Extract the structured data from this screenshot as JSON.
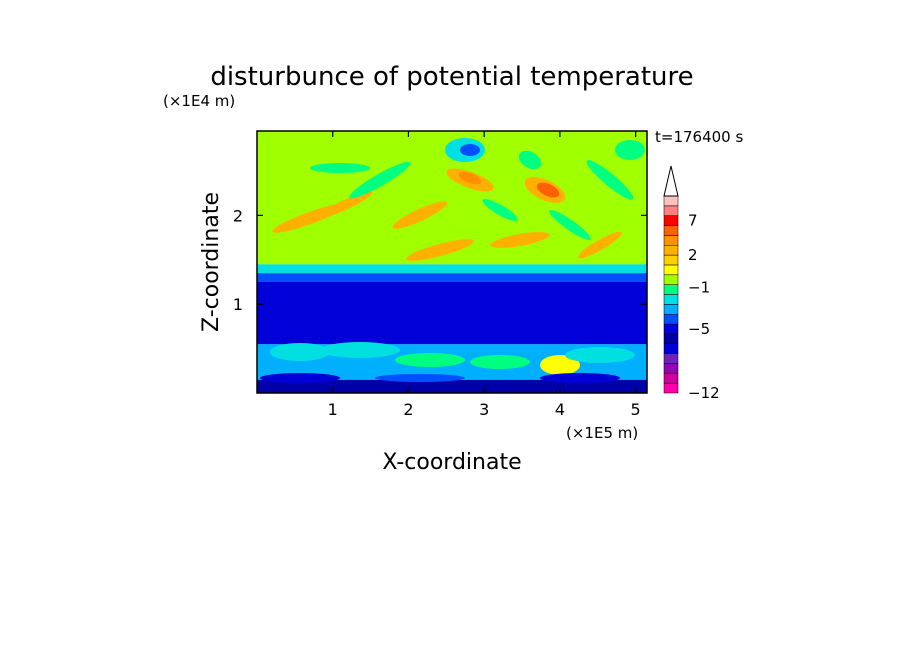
{
  "chart_data": {
    "type": "heatmap",
    "title": "disturbunce of potential temperature",
    "xlabel": "X-coordinate",
    "ylabel": "Z-coordinate",
    "x_unit": "(×1E5 m)",
    "y_unit": "(×1E4 m)",
    "time_label": "t=176400 s",
    "xlim": [
      0,
      5.15
    ],
    "ylim": [
      0,
      2.95
    ],
    "x_ticks": [
      "1",
      "2",
      "3",
      "4",
      "5"
    ],
    "y_ticks": [
      "1",
      "2"
    ],
    "colorbar": {
      "levels": [
        -12,
        -11,
        -10,
        -9,
        -7,
        -5,
        -4,
        -3,
        -2,
        -1,
        0,
        1,
        2,
        3,
        4,
        5,
        6,
        7,
        8,
        9,
        10
      ],
      "tick_labels": [
        "7",
        "2",
        "−1",
        "−5",
        "−12"
      ],
      "colors": [
        "#ff00aa",
        "#d000a0",
        "#9900b0",
        "#7020c0",
        "#0000d8",
        "#0000a8",
        "#0000d8",
        "#0050ff",
        "#00b0ff",
        "#00e0e0",
        "#00ff80",
        "#a0ff00",
        "#ffff00",
        "#ffd000",
        "#ffb000",
        "#ff9000",
        "#ff6000",
        "#ff0000",
        "#ff8080",
        "#ffc0c0"
      ],
      "extend": "max"
    },
    "regions": [
      {
        "z": [
          0.0,
          0.15
        ],
        "level": -4
      },
      {
        "z": [
          0.15,
          0.55
        ],
        "level": -1
      },
      {
        "z": [
          0.55,
          1.25
        ],
        "level": -5
      },
      {
        "z": [
          1.25,
          1.35
        ],
        "level": -2
      },
      {
        "z": [
          1.35,
          1.45
        ],
        "level": 0
      },
      {
        "z": [
          1.45,
          2.95
        ],
        "level": 2
      }
    ]
  }
}
